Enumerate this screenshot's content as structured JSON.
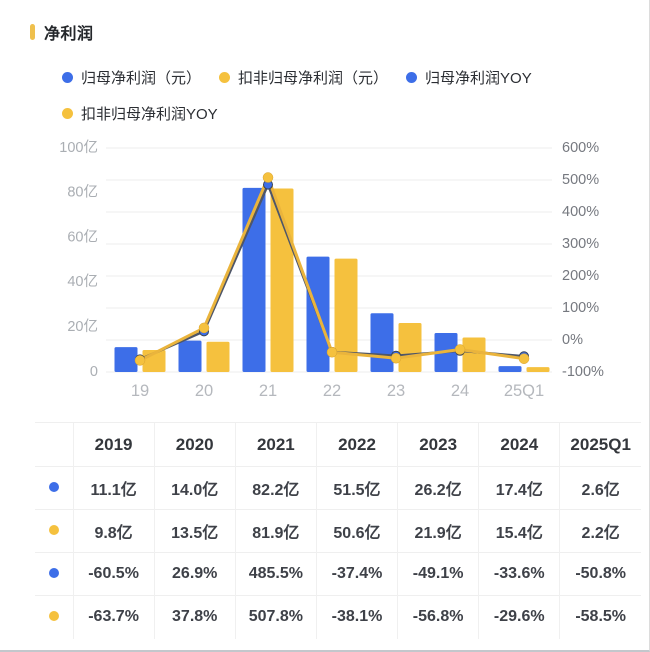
{
  "page": {
    "title": "净利润"
  },
  "colors": {
    "blue": "#3D6EE8",
    "yellow": "#F5C13E",
    "blue_line": "#4E5669",
    "yellow_line": "#EAB43C",
    "accent": "#EFC04D",
    "grid": "#ededed",
    "left_tick_text": "#aaaeb3",
    "right_tick_text": "#75787f",
    "x_tick_text": "#b5b8bd"
  },
  "legend": [
    {
      "label": "归母净利润（元）",
      "color": "#3D6EE8"
    },
    {
      "label": "扣非归母净利润（元）",
      "color": "#F5C13E"
    },
    {
      "label": "归母净利润YOY",
      "color": "#3D6EE8"
    },
    {
      "label": "扣非归母净利润YOY",
      "color": "#F5C13E"
    }
  ],
  "chart_data": {
    "type": "bar",
    "subtype": "dual-axis bar + line",
    "title": "净利润",
    "categories": [
      "19",
      "20",
      "21",
      "22",
      "23",
      "24",
      "25Q1"
    ],
    "series": [
      {
        "name": "归母净利润（元）",
        "type": "bar",
        "axis": "left",
        "unit": "亿",
        "color": "#3D6EE8",
        "values": [
          11.1,
          14.0,
          82.2,
          51.5,
          26.2,
          17.4,
          2.6
        ]
      },
      {
        "name": "扣非归母净利润（元）",
        "type": "bar",
        "axis": "left",
        "unit": "亿",
        "color": "#F5C13E",
        "values": [
          9.8,
          13.5,
          81.9,
          50.6,
          21.9,
          15.4,
          2.2
        ]
      },
      {
        "name": "归母净利润YOY",
        "type": "line",
        "axis": "right",
        "unit": "%",
        "color": "#3D6EE8",
        "line_color": "#4E5669",
        "values": [
          -60.5,
          26.9,
          485.5,
          -37.4,
          -49.1,
          -33.6,
          -50.8
        ]
      },
      {
        "name": "扣非归母净利润YOY",
        "type": "line",
        "axis": "right",
        "unit": "%",
        "color": "#F5C13E",
        "line_color": "#EAB43C",
        "values": [
          -63.7,
          37.8,
          507.8,
          -38.1,
          -56.8,
          -29.6,
          -58.5
        ]
      }
    ],
    "left_axis": {
      "min": 0,
      "max": 100,
      "ticks": [
        {
          "value": 100,
          "label": "100亿"
        },
        {
          "value": 80,
          "label": "80亿"
        },
        {
          "value": 60,
          "label": "60亿"
        },
        {
          "value": 40,
          "label": "40亿"
        },
        {
          "value": 20,
          "label": "20亿"
        },
        {
          "value": 0,
          "label": "0"
        }
      ]
    },
    "right_axis": {
      "min": -100,
      "max": 600,
      "ticks": [
        {
          "value": 600,
          "label": "600%"
        },
        {
          "value": 500,
          "label": "500%"
        },
        {
          "value": 400,
          "label": "400%"
        },
        {
          "value": 300,
          "label": "300%"
        },
        {
          "value": 200,
          "label": "200%"
        },
        {
          "value": 100,
          "label": "100%"
        },
        {
          "value": 0,
          "label": "0%"
        },
        {
          "value": -100,
          "label": "-100%"
        }
      ]
    },
    "grid": true,
    "legend_position": "top"
  },
  "table": {
    "headers": [
      "2019",
      "2020",
      "2021",
      "2022",
      "2023",
      "2024",
      "2025Q1"
    ],
    "rows": [
      {
        "dot_color": "#3D6EE8",
        "cells": [
          "11.1亿",
          "14.0亿",
          "82.2亿",
          "51.5亿",
          "26.2亿",
          "17.4亿",
          "2.6亿"
        ]
      },
      {
        "dot_color": "#F5C13E",
        "cells": [
          "9.8亿",
          "13.5亿",
          "81.9亿",
          "50.6亿",
          "21.9亿",
          "15.4亿",
          "2.2亿"
        ]
      },
      {
        "dot_color": "#3D6EE8",
        "cells": [
          "-60.5%",
          "26.9%",
          "485.5%",
          "-37.4%",
          "-49.1%",
          "-33.6%",
          "-50.8%"
        ]
      },
      {
        "dot_color": "#F5C13E",
        "cells": [
          "-63.7%",
          "37.8%",
          "507.8%",
          "-38.1%",
          "-56.8%",
          "-29.6%",
          "-58.5%"
        ]
      }
    ]
  }
}
